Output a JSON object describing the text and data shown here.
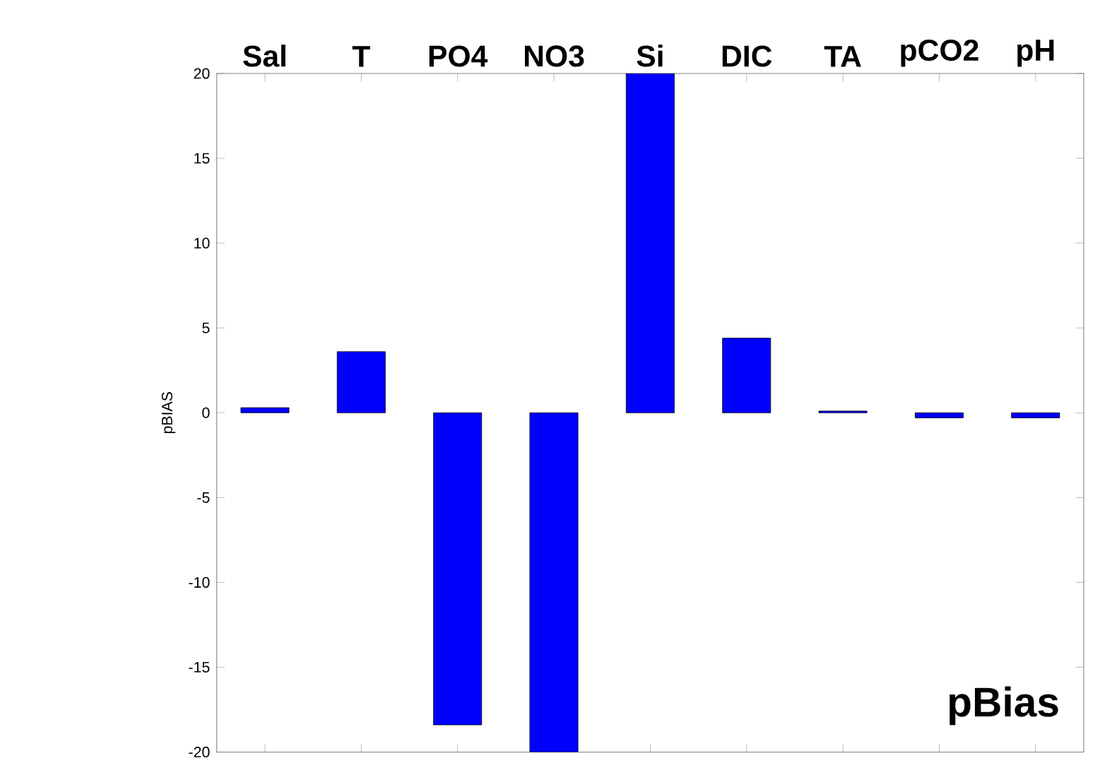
{
  "chart_data": {
    "type": "bar",
    "categories": [
      "Sal",
      "T",
      "PO4",
      "NO3",
      "Si",
      "DIC",
      "TA",
      "pCO2",
      "pH"
    ],
    "values": [
      0.3,
      3.6,
      -18.4,
      -20,
      20,
      4.4,
      0.1,
      -0.3,
      -0.3
    ],
    "color": "#0000ff",
    "ylabel": "pBIAS",
    "annotations": [
      "pBias"
    ],
    "ylim": [
      -20,
      20
    ],
    "yticks": [
      -20,
      -15,
      -10,
      -5,
      0,
      5,
      10,
      15,
      20
    ],
    "grid": false
  }
}
